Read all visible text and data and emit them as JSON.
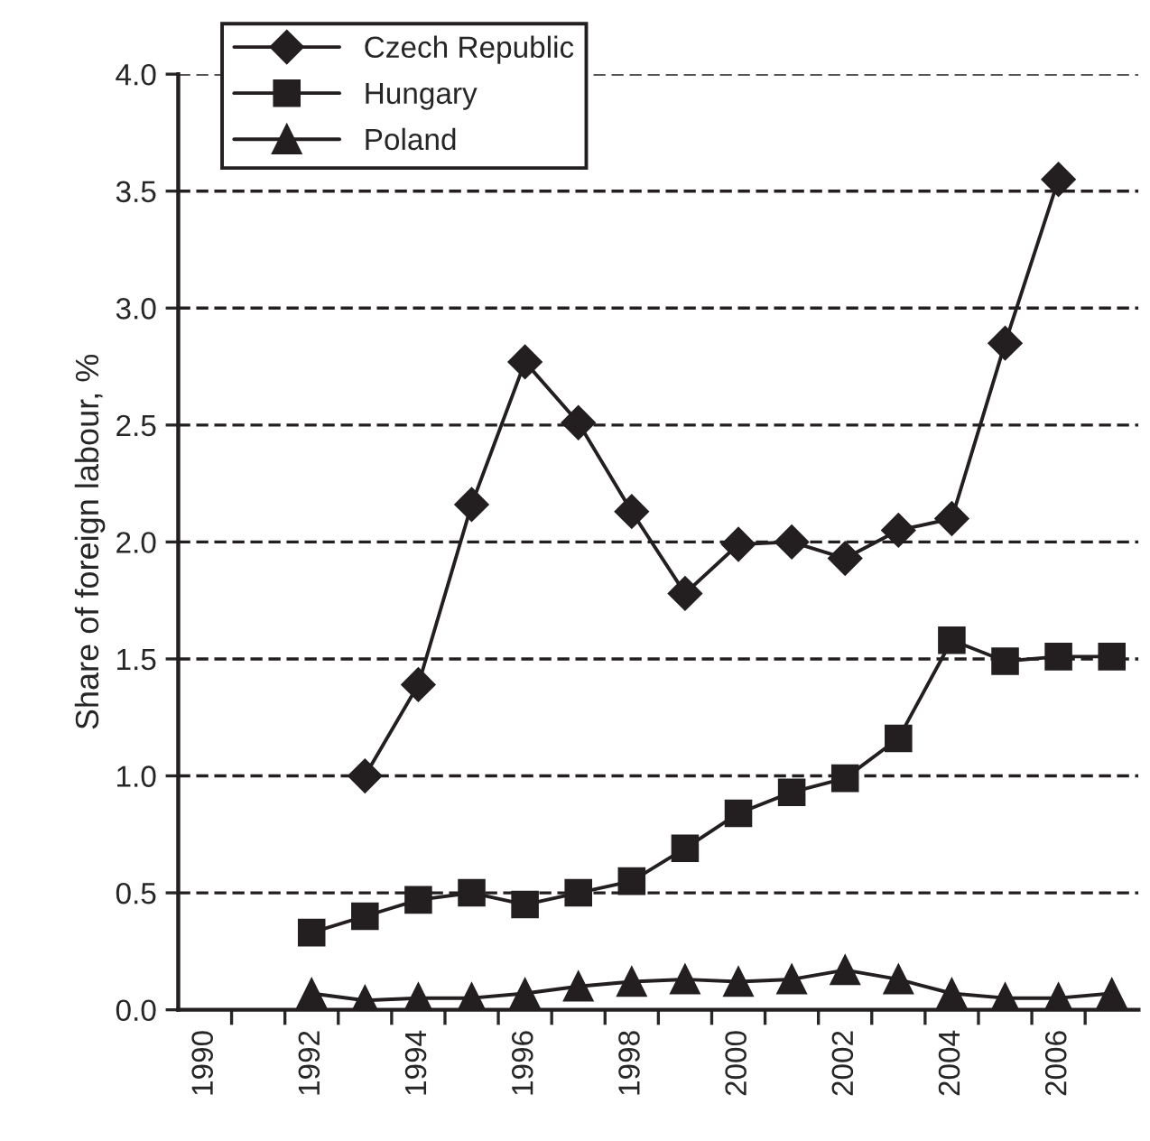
{
  "chart_data": {
    "type": "line",
    "ylabel": "Share of foreign labour, %",
    "categories": [
      "1990",
      null,
      "1992",
      null,
      "1994",
      null,
      "1996",
      null,
      "1998",
      null,
      "2000",
      null,
      "2002",
      null,
      "2004",
      null,
      "2006",
      null
    ],
    "series": [
      {
        "name": "Czech Republic",
        "color": "#231f20",
        "marker": "diamond",
        "values": [
          null,
          null,
          null,
          1.0,
          1.39,
          2.16,
          2.77,
          2.51,
          2.13,
          1.78,
          1.99,
          2.0,
          1.93,
          2.05,
          2.1,
          2.85,
          3.55,
          null
        ]
      },
      {
        "name": "Hungary",
        "color": "#231f20",
        "marker": "square",
        "values": [
          null,
          null,
          0.33,
          0.4,
          0.47,
          0.5,
          0.45,
          0.5,
          0.55,
          0.69,
          0.84,
          0.93,
          0.99,
          1.16,
          1.58,
          1.49,
          1.51,
          1.51
        ]
      },
      {
        "name": "Poland",
        "color": "#231f20",
        "marker": "triangle",
        "values": [
          null,
          null,
          0.07,
          0.04,
          0.05,
          0.05,
          0.07,
          0.1,
          0.12,
          0.13,
          0.12,
          0.13,
          0.17,
          0.13,
          0.07,
          0.05,
          0.05,
          0.07
        ]
      }
    ],
    "ylim": [
      0,
      4.0
    ],
    "yticks": [
      {
        "value": 0,
        "label": "0.0"
      },
      {
        "value": 0.5,
        "label": "0.5"
      },
      {
        "value": 1.0,
        "label": "1.0"
      },
      {
        "value": 1.5,
        "label": "1.5"
      },
      {
        "value": 2.0,
        "label": "2.0"
      },
      {
        "value": 2.5,
        "label": "2.5"
      },
      {
        "value": 3.0,
        "label": "3.0"
      },
      {
        "value": 3.5,
        "label": "3.5"
      },
      {
        "value": 4.0,
        "label": "4.0"
      }
    ],
    "grid": "y",
    "legend": "top left",
    "line_style": "solid"
  }
}
